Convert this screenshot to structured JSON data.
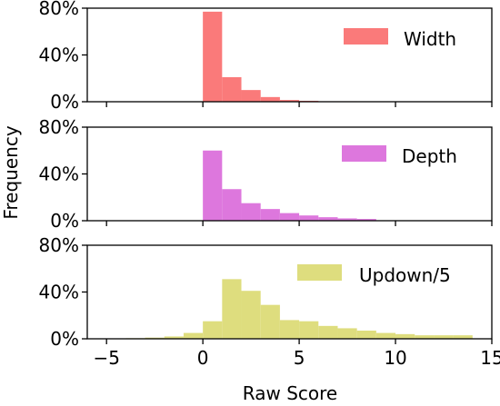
{
  "chart_data": {
    "type": "histogram",
    "xlabel": "Raw Score",
    "ylabel": "Frequency",
    "xlim": [
      -6,
      15
    ],
    "x_ticks": [
      -5,
      0,
      5,
      10,
      15
    ],
    "x_tick_labels": [
      "−5",
      "0",
      "5",
      "10",
      "15"
    ],
    "ylim": [
      0,
      0.8
    ],
    "y_ticks": [
      0,
      0.4,
      0.8
    ],
    "y_tick_labels": [
      "0%",
      "40%",
      "80%"
    ],
    "legend_position": "upper-right",
    "bin_width": 1,
    "panels": [
      {
        "series_name": "Width",
        "color": "#fa7a7a",
        "bins": [
          {
            "x0": 0,
            "value": 0.77
          },
          {
            "x0": 1,
            "value": 0.21
          },
          {
            "x0": 2,
            "value": 0.1
          },
          {
            "x0": 3,
            "value": 0.04
          },
          {
            "x0": 4,
            "value": 0.015
          },
          {
            "x0": 5,
            "value": 0.008
          },
          {
            "x0": 6,
            "value": 0.004
          },
          {
            "x0": 7,
            "value": 0.004
          },
          {
            "x0": 8,
            "value": 0.003
          }
        ]
      },
      {
        "series_name": "Depth",
        "color": "#dd77dd",
        "bins": [
          {
            "x0": 0,
            "value": 0.6
          },
          {
            "x0": 1,
            "value": 0.27
          },
          {
            "x0": 2,
            "value": 0.15
          },
          {
            "x0": 3,
            "value": 0.1
          },
          {
            "x0": 4,
            "value": 0.065
          },
          {
            "x0": 5,
            "value": 0.045
          },
          {
            "x0": 6,
            "value": 0.03
          },
          {
            "x0": 7,
            "value": 0.02
          },
          {
            "x0": 8,
            "value": 0.015
          }
        ]
      },
      {
        "series_name": "Updown/5",
        "color": "#dedd7e",
        "bins": [
          {
            "x0": -4,
            "value": 0.005
          },
          {
            "x0": -3,
            "value": 0.01
          },
          {
            "x0": -2,
            "value": 0.02
          },
          {
            "x0": -1,
            "value": 0.05
          },
          {
            "x0": 0,
            "value": 0.15
          },
          {
            "x0": 1,
            "value": 0.51
          },
          {
            "x0": 2,
            "value": 0.41
          },
          {
            "x0": 3,
            "value": 0.29
          },
          {
            "x0": 4,
            "value": 0.16
          },
          {
            "x0": 5,
            "value": 0.15
          },
          {
            "x0": 6,
            "value": 0.11
          },
          {
            "x0": 7,
            "value": 0.09
          },
          {
            "x0": 8,
            "value": 0.07
          },
          {
            "x0": 9,
            "value": 0.05
          },
          {
            "x0": 10,
            "value": 0.04
          },
          {
            "x0": 11,
            "value": 0.03
          },
          {
            "x0": 12,
            "value": 0.03
          },
          {
            "x0": 13,
            "value": 0.03
          }
        ]
      }
    ]
  }
}
